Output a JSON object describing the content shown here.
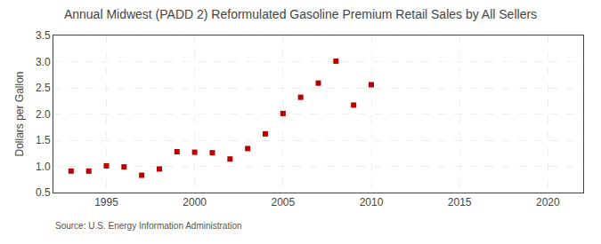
{
  "chart_data": {
    "type": "scatter",
    "title": "Annual Midwest (PADD 2) Reformulated Gasoline Premium Retail Sales by All Sellers",
    "ylabel": "Dollars per Gallon",
    "annotations": [
      "Source: U.S. Energy Information Administration"
    ],
    "x": [
      1993,
      1994,
      1995,
      1996,
      1997,
      1998,
      1999,
      2000,
      2001,
      2002,
      2003,
      2004,
      2005,
      2006,
      2007,
      2008,
      2009,
      2010
    ],
    "values": [
      0.91,
      0.91,
      1.01,
      0.99,
      0.83,
      0.95,
      1.28,
      1.27,
      1.26,
      1.14,
      1.34,
      1.62,
      2.01,
      2.32,
      2.59,
      3.01,
      2.17,
      2.56
    ],
    "color": "#bb0000",
    "marker": "square",
    "xlim": [
      1992,
      2022
    ],
    "ylim": [
      0.5,
      3.5
    ],
    "xticks": [
      1995,
      2000,
      2005,
      2010,
      2015,
      2020
    ],
    "yticks": [
      0.5,
      {
        "value": 1,
        "label": "1.0"
      },
      1.5,
      {
        "value": 2,
        "label": "2.0"
      },
      2.5,
      {
        "value": 3,
        "label": "3.0"
      },
      3.5
    ],
    "grid": true
  }
}
